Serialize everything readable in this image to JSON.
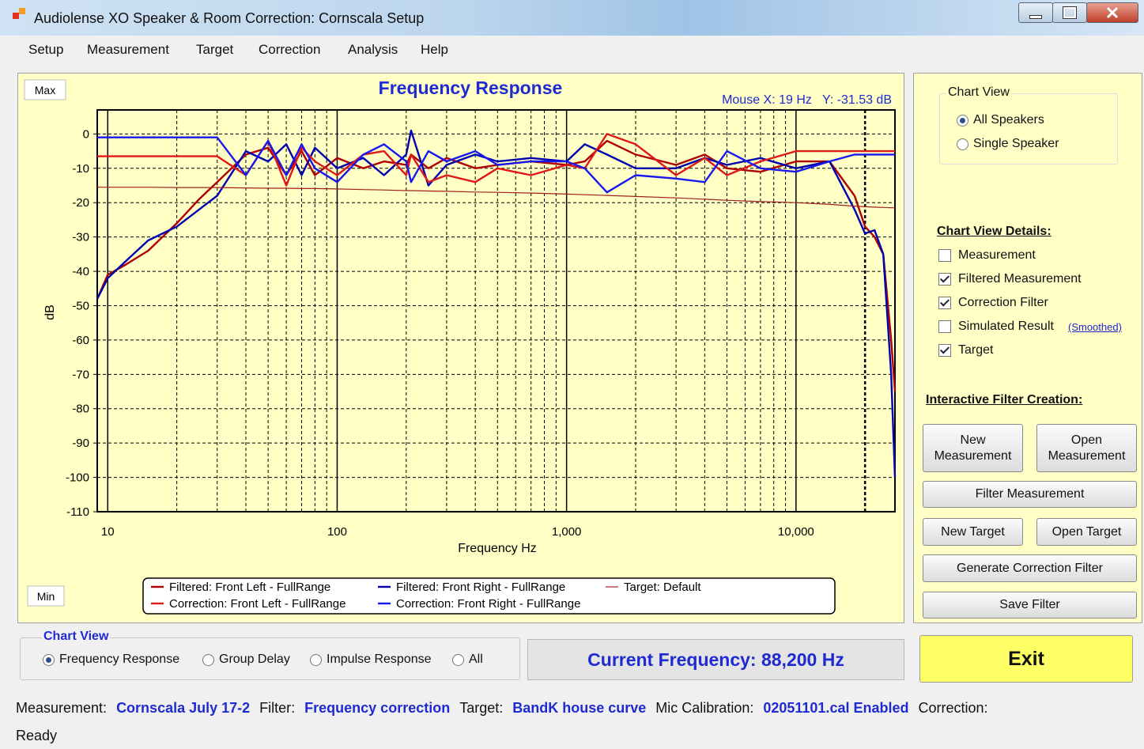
{
  "window": {
    "title": "Audiolense XO Speaker & Room Correction: Cornscala Setup"
  },
  "menu": [
    "Setup",
    "Measurement",
    "Target",
    "Correction",
    "Analysis",
    "Help"
  ],
  "chart_data": {
    "type": "line",
    "title": "Frequency Response",
    "mouse_readout": "Mouse X: 19 Hz   Y: -31.53 dB",
    "max_button": "Max",
    "min_button": "Min",
    "x_label": "Frequency Hz",
    "y_label": "dB",
    "log_x": true,
    "grid": true,
    "xlim": [
      9,
      27000
    ],
    "ylim": [
      -110,
      7
    ],
    "xticks": [
      10,
      100,
      {
        "value": 1000,
        "label": "1,000"
      },
      {
        "value": 10000,
        "label": "10,000"
      }
    ],
    "x_minor_grid": [
      20,
      30,
      40,
      50,
      60,
      70,
      80,
      90,
      200,
      300,
      400,
      500,
      600,
      700,
      800,
      900,
      2000,
      3000,
      4000,
      5000,
      6000,
      7000,
      8000,
      9000,
      20000
    ],
    "yticks": [
      0,
      -10,
      -20,
      -30,
      -40,
      -50,
      -60,
      -70,
      -80,
      -90,
      -100,
      -110
    ],
    "x": [
      9,
      10,
      12,
      15,
      20,
      25,
      30,
      40,
      50,
      60,
      70,
      80,
      100,
      130,
      160,
      200,
      210,
      250,
      300,
      400,
      500,
      700,
      1000,
      1200,
      1500,
      2000,
      3000,
      4000,
      5000,
      7000,
      10000,
      14000,
      18000,
      20000,
      22000,
      24000,
      26000,
      27000
    ],
    "series": [
      {
        "name": "Filtered: Front Left - FullRange",
        "color": "#b00000",
        "values": [
          -48,
          -41,
          -38,
          -34,
          -26,
          -19,
          -14,
          -6,
          -4,
          -12,
          -5,
          -12,
          -7,
          -10,
          -8,
          -9,
          -6,
          -10,
          -7,
          -10,
          -9,
          -8,
          -9,
          -8,
          -2,
          -6,
          -9,
          -6,
          -10,
          -11,
          -8,
          -8,
          -18,
          -27,
          -30,
          -35,
          -60,
          -75
        ]
      },
      {
        "name": "Filtered: Front Right - FullRange",
        "color": "#0000b0",
        "values": [
          -48,
          -42,
          -37,
          -31,
          -27,
          -22,
          -18,
          -5,
          -8,
          -3,
          -12,
          -4,
          -10,
          -7,
          -12,
          -6,
          1,
          -15,
          -9,
          -6,
          -8,
          -7,
          -8,
          -3,
          -6,
          -10,
          -10,
          -7,
          -9,
          -7,
          -10,
          -8,
          -22,
          -29,
          -28,
          -35,
          -70,
          -100
        ]
      },
      {
        "name": "Target: Default",
        "color": "#a02020",
        "thin": true,
        "values": [
          -15.5,
          -15.5,
          -15.5,
          -15.5,
          -15.6,
          -15.6,
          -15.6,
          -15.7,
          -15.8,
          -15.8,
          -15.9,
          -15.9,
          -16,
          -16.2,
          -16.3,
          -16.5,
          -16.5,
          -16.6,
          -16.7,
          -16.9,
          -17,
          -17.2,
          -17.5,
          -17.7,
          -17.9,
          -18.2,
          -18.6,
          -19,
          -19.3,
          -19.7,
          -20,
          -20.5,
          -21,
          -21.2,
          -21.3,
          -21.4,
          -21.5,
          -21.5
        ]
      },
      {
        "name": "Correction: Front Left - FullRange",
        "color": "#e01818",
        "values": [
          -6.5,
          -6.5,
          -6.5,
          -6.5,
          -6.5,
          -6.5,
          -6.5,
          -12,
          -2,
          -15,
          -4,
          -8,
          -12,
          -6,
          -5,
          -12,
          -6,
          -14,
          -12,
          -14,
          -10,
          -12,
          -9,
          -10,
          0,
          -3,
          -12,
          -7,
          -12,
          -8,
          -5,
          -5,
          -5,
          -5,
          -5,
          -5,
          -5,
          -5
        ]
      },
      {
        "name": "Correction: Front Right - FullRange",
        "color": "#1818f0",
        "values": [
          -1,
          -1,
          -1,
          -1,
          -1,
          -1,
          -1,
          -12,
          -2,
          -12,
          -3,
          -10,
          -14,
          -6,
          -3,
          -8,
          -14,
          -5,
          -8,
          -5,
          -9,
          -8,
          -8,
          -10,
          -17,
          -12,
          -13,
          -14,
          -5,
          -10,
          -11,
          -8,
          -6,
          -6,
          -6,
          -6,
          -6,
          -6
        ]
      }
    ]
  },
  "right_panel": {
    "chart_view": {
      "title": "Chart View",
      "options": [
        {
          "label": "All Speakers",
          "selected": true
        },
        {
          "label": "Single Speaker",
          "selected": false
        }
      ]
    },
    "details": {
      "title": "Chart View Details:",
      "items": [
        {
          "label": "Measurement",
          "checked": false
        },
        {
          "label": "Filtered Measurement",
          "checked": true
        },
        {
          "label": "Correction Filter",
          "checked": true
        },
        {
          "label": "Simulated Result",
          "checked": false
        },
        {
          "label": "Target",
          "checked": true
        }
      ],
      "smoothed_link": "(Smoothed)"
    },
    "filter_creation": {
      "title": "Interactive Filter Creation:",
      "buttons": [
        "New Measurement",
        "Open Measurement",
        "Filter Measurement",
        "New Target",
        "Open Target",
        "Generate Correction Filter",
        "Save Filter"
      ]
    }
  },
  "bottom": {
    "chart_view": {
      "title": "Chart View",
      "options": [
        {
          "label": "Frequency Response",
          "selected": true
        },
        {
          "label": "Group Delay",
          "selected": false
        },
        {
          "label": "Impulse Response",
          "selected": false
        },
        {
          "label": "All",
          "selected": false
        }
      ]
    },
    "current_frequency": "Current Frequency: 88,200 Hz",
    "exit": "Exit"
  },
  "status": {
    "fields": [
      {
        "label": "Measurement:",
        "value": "Cornscala July 17-2"
      },
      {
        "label": "Filter:",
        "value": "Frequency correction"
      },
      {
        "label": "Target:",
        "value": "BandK house curve"
      },
      {
        "label": "Mic Calibration:",
        "value": "02051101.cal Enabled"
      },
      {
        "label": "Correction:"
      }
    ],
    "state": "Ready"
  }
}
